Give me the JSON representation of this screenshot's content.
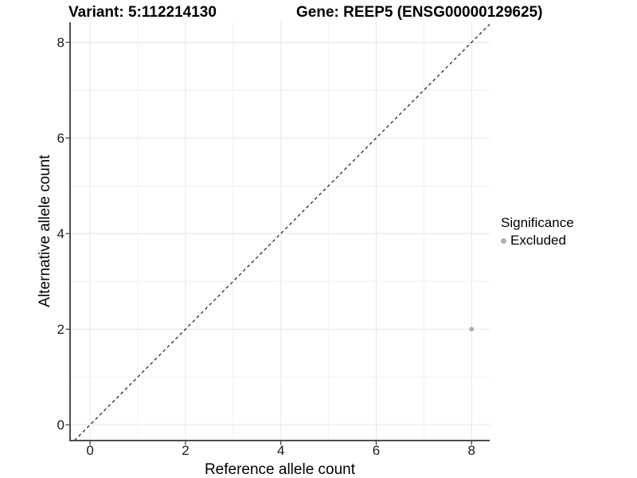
{
  "figure": {
    "background": "#ffffff",
    "titles": {
      "variant": "Variant: 5:112214130",
      "gene": "Gene: REEP5 (ENSG00000129625)"
    }
  },
  "chart_data": {
    "type": "scatter",
    "xlabel": "Reference allele count",
    "ylabel": "Alternative allele count",
    "xlim": [
      -0.42,
      8.38
    ],
    "ylim": [
      -0.33,
      8.42
    ],
    "x_ticks": [
      0,
      2,
      4,
      6,
      8
    ],
    "y_ticks": [
      0,
      2,
      4,
      6,
      8
    ],
    "x_minor_ticks": [
      1,
      3,
      5,
      7
    ],
    "y_minor_ticks": [
      1,
      3,
      5,
      7
    ],
    "grid": true,
    "points": [
      {
        "x": 8,
        "y": 2,
        "series": "Excluded"
      }
    ],
    "reference_line": {
      "kind": "identity",
      "slope": 1,
      "intercept": 0,
      "style": "dashed"
    },
    "legend": {
      "title": "Significance",
      "position": "right",
      "items": [
        {
          "label": "Excluded",
          "color": "#b0b0b0"
        }
      ]
    },
    "colors": {
      "point": "#b0b0b0",
      "grid_major": "#e6e6e6",
      "grid_minor": "#f0f0f0",
      "axis": "#4d4d4d",
      "tick_mark": "#333333",
      "tick_label": "#1a1a1a",
      "reference_line": "#1a1a1a"
    }
  }
}
